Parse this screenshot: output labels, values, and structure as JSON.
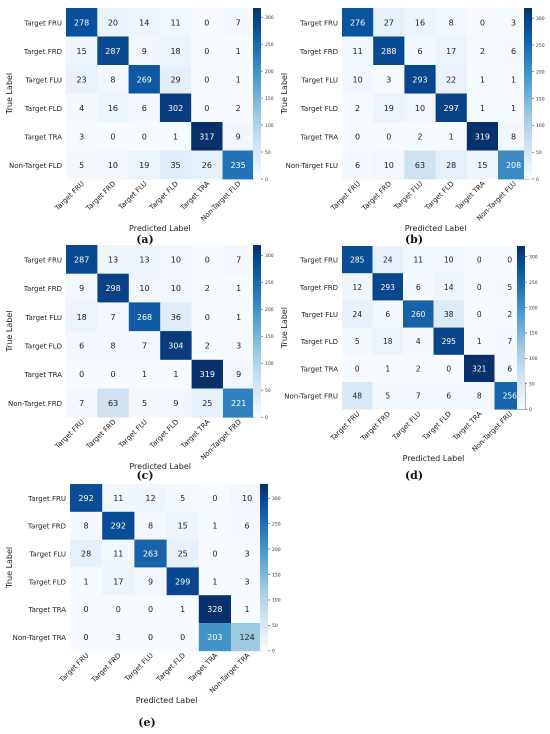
{
  "chart_data": [
    {
      "type": "heatmap",
      "panel_label": "(a)",
      "xlabel": "Predicted Label",
      "ylabel": "True Label",
      "x_categories": [
        "Target FRU",
        "Target FRD",
        "Target FLU",
        "Target FLD",
        "Target TRA",
        "Non-Target FLD"
      ],
      "y_categories": [
        "Target FRU",
        "Target FRD",
        "Target FLU",
        "Target FLD",
        "Target TRA",
        "Non-Target FLD"
      ],
      "values": [
        [
          278,
          20,
          14,
          11,
          0,
          7
        ],
        [
          15,
          287,
          9,
          18,
          0,
          1
        ],
        [
          23,
          8,
          269,
          29,
          0,
          1
        ],
        [
          4,
          16,
          6,
          302,
          0,
          2
        ],
        [
          3,
          0,
          0,
          1,
          317,
          9
        ],
        [
          5,
          10,
          19,
          35,
          26,
          235
        ]
      ],
      "colorbar_ticks": [
        0,
        50,
        100,
        150,
        200,
        250,
        300
      ],
      "vmax": 317,
      "cmap": "Blues"
    },
    {
      "type": "heatmap",
      "panel_label": "(b)",
      "xlabel": "Predicted Label",
      "ylabel": "True Label",
      "x_categories": [
        "Target FRU",
        "Target FRD",
        "Target FLU",
        "Target FLD",
        "Target TRA",
        "Non-Target FLU"
      ],
      "y_categories": [
        "Target FRU",
        "Target FRD",
        "Target FLU",
        "Target FLD",
        "Target TRA",
        "Non-Target FLU"
      ],
      "values": [
        [
          276,
          27,
          16,
          8,
          0,
          3
        ],
        [
          11,
          288,
          6,
          17,
          2,
          6
        ],
        [
          10,
          3,
          293,
          22,
          1,
          1
        ],
        [
          2,
          19,
          10,
          297,
          1,
          1
        ],
        [
          0,
          0,
          2,
          1,
          319,
          8
        ],
        [
          6,
          10,
          63,
          28,
          15,
          208
        ]
      ],
      "colorbar_ticks": [
        0,
        50,
        100,
        150,
        200,
        250,
        300
      ],
      "vmax": 319,
      "cmap": "Blues"
    },
    {
      "type": "heatmap",
      "panel_label": "(c)",
      "xlabel": "Predicted Label",
      "ylabel": "True Label",
      "x_categories": [
        "Target FRU",
        "Target FRD",
        "Target FLU",
        "Target FLD",
        "Target TRA",
        "Non-Target FRD"
      ],
      "y_categories": [
        "Target FRU",
        "Target FRD",
        "Target FLU",
        "Target FLD",
        "Target TRA",
        "Non-Target FRD"
      ],
      "values": [
        [
          287,
          13,
          13,
          10,
          0,
          7
        ],
        [
          9,
          298,
          10,
          10,
          2,
          1
        ],
        [
          18,
          7,
          268,
          36,
          0,
          1
        ],
        [
          6,
          8,
          7,
          304,
          2,
          3
        ],
        [
          0,
          0,
          1,
          1,
          319,
          9
        ],
        [
          7,
          63,
          5,
          9,
          25,
          221
        ]
      ],
      "colorbar_ticks": [
        0,
        50,
        100,
        150,
        200,
        250,
        300
      ],
      "vmax": 319,
      "cmap": "Blues"
    },
    {
      "type": "heatmap",
      "panel_label": "(d)",
      "xlabel": "Predicted Label",
      "ylabel": "True Label",
      "x_categories": [
        "Target FRU",
        "Target FRD",
        "Target FLU",
        "Target FLD",
        "Target TRA",
        "Non-Target FRU"
      ],
      "y_categories": [
        "Target FRU",
        "Target FRD",
        "Target FLU",
        "Target FLD",
        "Target TRA",
        "Non-Target FRU"
      ],
      "values": [
        [
          285,
          24,
          11,
          10,
          0,
          0
        ],
        [
          12,
          293,
          6,
          14,
          0,
          5
        ],
        [
          24,
          6,
          260,
          38,
          0,
          2
        ],
        [
          5,
          18,
          4,
          295,
          1,
          7
        ],
        [
          0,
          1,
          2,
          0,
          321,
          6
        ],
        [
          48,
          5,
          7,
          6,
          8,
          256
        ]
      ],
      "colorbar_ticks": [
        0,
        50,
        100,
        150,
        200,
        250,
        300
      ],
      "vmax": 321,
      "cmap": "Blues"
    },
    {
      "type": "heatmap",
      "panel_label": "(e)",
      "xlabel": "Predicted Label",
      "ylabel": "True Label",
      "x_categories": [
        "Target FRU",
        "Target FRD",
        "Target FLU",
        "Target FLD",
        "Target TRA",
        "Non-Target TRA"
      ],
      "y_categories": [
        "Target FRU",
        "Target FRD",
        "Target FLU",
        "Target FLD",
        "Target TRA",
        "Non-Target TRA"
      ],
      "values": [
        [
          292,
          11,
          12,
          5,
          0,
          10
        ],
        [
          8,
          292,
          8,
          15,
          1,
          6
        ],
        [
          28,
          11,
          263,
          25,
          0,
          3
        ],
        [
          1,
          17,
          9,
          299,
          1,
          3
        ],
        [
          0,
          0,
          0,
          1,
          328,
          1
        ],
        [
          0,
          3,
          0,
          0,
          203,
          124
        ]
      ],
      "colorbar_ticks": [
        0,
        50,
        100,
        150,
        200,
        250,
        300
      ],
      "vmax": 328,
      "cmap": "Blues"
    }
  ]
}
